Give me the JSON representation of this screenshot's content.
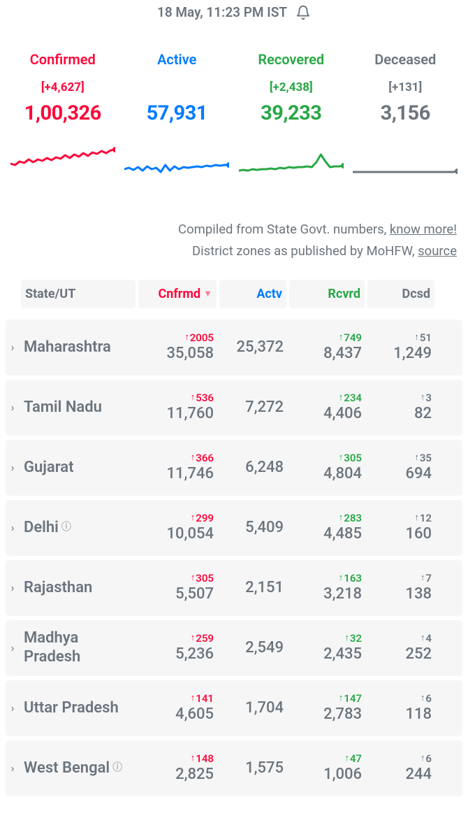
{
  "timestamp": "18 May, 11:23 PM IST",
  "summary": {
    "confirmed": {
      "label": "Confirmed",
      "delta": "[+4,627]",
      "value": "1,00,326"
    },
    "active": {
      "label": "Active",
      "delta": "",
      "value": "57,931"
    },
    "recovered": {
      "label": "Recovered",
      "delta": "[+2,438]",
      "value": "39,233"
    },
    "deceased": {
      "label": "Deceased",
      "delta": "[+131]",
      "value": "3,156"
    }
  },
  "sparklines": {
    "colors": {
      "confirmed": "#ff073a",
      "active": "#007bff",
      "recovered": "#28a745",
      "deceased": "#6c757d"
    },
    "confirmed": [
      28,
      30,
      25,
      27,
      22,
      26,
      22,
      24,
      20,
      23,
      19,
      21,
      16,
      20,
      15,
      18,
      13,
      17,
      12,
      14,
      10,
      13,
      9,
      8
    ],
    "active": [
      36,
      34,
      37,
      33,
      38,
      32,
      36,
      34,
      40,
      30,
      38,
      32,
      36,
      33,
      34,
      33,
      32,
      33,
      31,
      32,
      30,
      31,
      30,
      30
    ],
    "recovered": [
      38,
      37,
      38,
      36,
      37,
      36,
      36,
      35,
      36,
      34,
      35,
      33,
      34,
      33,
      33,
      32,
      33,
      26,
      15,
      25,
      33,
      32,
      32,
      31
    ],
    "deceased": [
      40,
      40,
      40,
      40,
      40,
      40,
      40,
      40,
      40,
      40,
      40,
      40,
      40,
      40,
      40,
      40,
      40,
      40,
      40,
      40,
      40,
      40,
      40,
      39
    ]
  },
  "attribution": {
    "line1a": "Compiled from State Govt. numbers, ",
    "line1b": "know more!",
    "line2a": "District zones as published by MoHFW, ",
    "line2b": "source"
  },
  "columns": {
    "state": "State/UT",
    "confirmed": "Cnfrmd",
    "active": "Actv",
    "recovered": "Rcvrd",
    "deceased": "Dcsd"
  },
  "rows": [
    {
      "state": "Maharashtra",
      "info": false,
      "cDelta": "2005",
      "c": "35,058",
      "a": "25,372",
      "rDelta": "749",
      "r": "8,437",
      "dDelta": "51",
      "d": "1,249"
    },
    {
      "state": "Tamil Nadu",
      "info": false,
      "cDelta": "536",
      "c": "11,760",
      "a": "7,272",
      "rDelta": "234",
      "r": "4,406",
      "dDelta": "3",
      "d": "82"
    },
    {
      "state": "Gujarat",
      "info": false,
      "cDelta": "366",
      "c": "11,746",
      "a": "6,248",
      "rDelta": "305",
      "r": "4,804",
      "dDelta": "35",
      "d": "694"
    },
    {
      "state": "Delhi",
      "info": true,
      "cDelta": "299",
      "c": "10,054",
      "a": "5,409",
      "rDelta": "283",
      "r": "4,485",
      "dDelta": "12",
      "d": "160"
    },
    {
      "state": "Rajasthan",
      "info": false,
      "cDelta": "305",
      "c": "5,507",
      "a": "2,151",
      "rDelta": "163",
      "r": "3,218",
      "dDelta": "7",
      "d": "138"
    },
    {
      "state": "Madhya Pradesh",
      "info": false,
      "cDelta": "259",
      "c": "5,236",
      "a": "2,549",
      "rDelta": "32",
      "r": "2,435",
      "dDelta": "4",
      "d": "252"
    },
    {
      "state": "Uttar Pradesh",
      "info": false,
      "cDelta": "141",
      "c": "4,605",
      "a": "1,704",
      "rDelta": "147",
      "r": "2,783",
      "dDelta": "6",
      "d": "118"
    },
    {
      "state": "West Bengal",
      "info": true,
      "cDelta": "148",
      "c": "2,825",
      "a": "1,575",
      "rDelta": "47",
      "r": "1,006",
      "dDelta": "6",
      "d": "244"
    }
  ]
}
